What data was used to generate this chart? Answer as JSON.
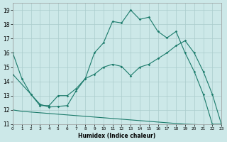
{
  "xlabel": "Humidex (Indice chaleur)",
  "background_color": "#cce8e8",
  "grid_color": "#aacccc",
  "line_color": "#1a7a6a",
  "xlim": [
    0,
    23
  ],
  "ylim": [
    11,
    19.5
  ],
  "xticks": [
    0,
    1,
    2,
    3,
    4,
    5,
    6,
    7,
    8,
    9,
    10,
    11,
    12,
    13,
    14,
    15,
    16,
    17,
    18,
    19,
    20,
    21,
    22,
    23
  ],
  "yticks": [
    11,
    12,
    13,
    14,
    15,
    16,
    17,
    18,
    19
  ],
  "line1_x": [
    0,
    1,
    2,
    3,
    4,
    5,
    6,
    7,
    8,
    9,
    10,
    11,
    12,
    13,
    14,
    15,
    16,
    17,
    18,
    19,
    20,
    21,
    22,
    23
  ],
  "line1_y": [
    16,
    14.2,
    13.1,
    12.3,
    12.3,
    13.0,
    13.0,
    13.5,
    14.2,
    16.0,
    16.7,
    18.2,
    18.1,
    19.0,
    18.35,
    18.5,
    17.5,
    17.05,
    17.5,
    16.0,
    14.7,
    13.1,
    11.0,
    11.0
  ],
  "line2_x": [
    0,
    2,
    3,
    4,
    5,
    6,
    7,
    8,
    9,
    10,
    11,
    12,
    13,
    14,
    15,
    16,
    17,
    18,
    19,
    20,
    21,
    22,
    23
  ],
  "line2_y": [
    14.5,
    13.1,
    12.4,
    12.2,
    12.25,
    12.3,
    13.35,
    14.2,
    14.5,
    15.0,
    15.2,
    15.05,
    14.4,
    15.0,
    15.2,
    15.6,
    16.0,
    16.5,
    16.85,
    16.0,
    14.7,
    13.1,
    11.0
  ],
  "line3_x": [
    0,
    1,
    2,
    3,
    4,
    5,
    6,
    7,
    8,
    9,
    10,
    11,
    12,
    13,
    14,
    15,
    16,
    17,
    18,
    19,
    20,
    21,
    22,
    23
  ],
  "line3_y": [
    12.0,
    11.9,
    11.85,
    11.8,
    11.75,
    11.7,
    11.65,
    11.6,
    11.55,
    11.5,
    11.45,
    11.4,
    11.35,
    11.3,
    11.25,
    11.2,
    11.15,
    11.1,
    11.05,
    11.0,
    10.98,
    10.95,
    10.92,
    10.9
  ]
}
